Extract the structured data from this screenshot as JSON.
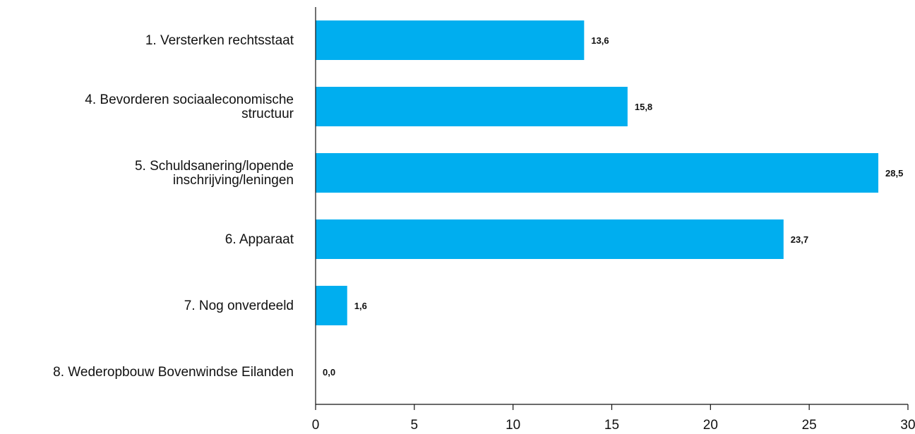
{
  "chart_data": {
    "type": "bar",
    "orientation": "horizontal",
    "categories": [
      [
        "1. Versterken rechtsstaat"
      ],
      [
        "4. Bevorderen sociaaleconomische",
        "structuur"
      ],
      [
        "5. Schuldsanering/lopende",
        "inschrijving/leningen"
      ],
      [
        "6. Apparaat"
      ],
      [
        "7. Nog onverdeeld"
      ],
      [
        "8. Wederopbouw Bovenwindse Eilanden"
      ]
    ],
    "values": [
      13.6,
      15.8,
      28.5,
      23.7,
      1.6,
      0.0
    ],
    "value_labels": [
      "13,6",
      "15,8",
      "28,5",
      "23,7",
      "1,6",
      "0,0"
    ],
    "xlim": [
      0,
      30
    ],
    "x_ticks": [
      0,
      5,
      10,
      15,
      20,
      25,
      30
    ],
    "title": "",
    "xlabel": "",
    "ylabel": "",
    "bar_color": "#00AEEF",
    "grid": false,
    "legend": "none"
  }
}
